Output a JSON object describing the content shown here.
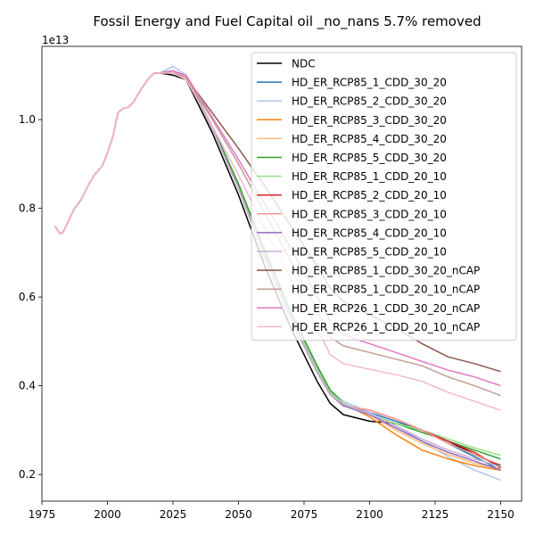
{
  "chart_data": {
    "type": "line",
    "title": "Fossil Energy and Fuel Capital oil _no_nans 5.7% removed",
    "xlabel": "",
    "ylabel": "",
    "y_offset_label": "1e13",
    "xlim": [
      1975,
      2158
    ],
    "ylim": [
      0.14,
      1.165
    ],
    "x_ticks": [
      1975,
      2000,
      2025,
      2050,
      2075,
      2100,
      2125,
      2150
    ],
    "y_ticks": [
      0.2,
      0.4,
      0.6,
      0.8,
      1.0
    ],
    "y_tick_labels": [
      "0.2",
      "0.4",
      "0.6",
      "0.8",
      "1.0"
    ],
    "grid": false,
    "legend_position": "upper right",
    "history": {
      "x": [
        1980,
        1981,
        1982,
        1983,
        1985,
        1987,
        1990,
        1993,
        1995,
        1998,
        2000,
        2002,
        2004,
        2006,
        2008,
        2010,
        2013,
        2016,
        2018,
        2020
      ],
      "y": [
        0.76,
        0.75,
        0.743,
        0.745,
        0.77,
        0.795,
        0.82,
        0.855,
        0.875,
        0.895,
        0.925,
        0.96,
        1.015,
        1.025,
        1.028,
        1.04,
        1.07,
        1.095,
        1.105,
        1.105
      ]
    },
    "series": [
      {
        "name": "NDC",
        "color": "#000000",
        "x": [
          2020,
          2025,
          2030,
          2040,
          2050,
          2060,
          2070,
          2080,
          2085,
          2090,
          2100,
          2110,
          2120,
          2130,
          2140,
          2150
        ],
        "y": [
          1.105,
          1.1,
          1.09,
          0.97,
          0.83,
          0.67,
          0.53,
          0.41,
          0.36,
          0.335,
          0.32,
          0.315,
          0.3,
          0.275,
          0.245,
          0.22
        ]
      },
      {
        "name": "HD_ER_RCP85_1_CDD_30_20",
        "color": "#1f77b4",
        "x": [
          2020,
          2025,
          2030,
          2040,
          2050,
          2060,
          2070,
          2080,
          2085,
          2090,
          2100,
          2110,
          2120,
          2130,
          2140,
          2150
        ],
        "y": [
          1.105,
          1.11,
          1.095,
          0.98,
          0.845,
          0.69,
          0.55,
          0.43,
          0.38,
          0.355,
          0.34,
          0.32,
          0.3,
          0.27,
          0.24,
          0.21
        ]
      },
      {
        "name": "HD_ER_RCP85_2_CDD_30_20",
        "color": "#aec7e8",
        "x": [
          2020,
          2025,
          2030,
          2040,
          2050,
          2060,
          2070,
          2080,
          2085,
          2090,
          2100,
          2110,
          2120,
          2130,
          2140,
          2150
        ],
        "y": [
          1.105,
          1.12,
          1.1,
          0.985,
          0.85,
          0.7,
          0.56,
          0.44,
          0.39,
          0.365,
          0.34,
          0.31,
          0.275,
          0.24,
          0.21,
          0.187
        ]
      },
      {
        "name": "HD_ER_RCP85_3_CDD_30_20",
        "color": "#ff7f0e",
        "x": [
          2020,
          2025,
          2030,
          2040,
          2050,
          2060,
          2070,
          2080,
          2085,
          2090,
          2100,
          2110,
          2120,
          2130,
          2140,
          2150
        ],
        "y": [
          1.105,
          1.11,
          1.095,
          0.98,
          0.845,
          0.695,
          0.555,
          0.435,
          0.385,
          0.36,
          0.33,
          0.29,
          0.255,
          0.235,
          0.22,
          0.21
        ]
      },
      {
        "name": "HD_ER_RCP85_4_CDD_30_20",
        "color": "#ffbb78",
        "x": [
          2020,
          2025,
          2030,
          2040,
          2050,
          2060,
          2070,
          2080,
          2085,
          2090,
          2100,
          2110,
          2120,
          2130,
          2140,
          2150
        ],
        "y": [
          1.105,
          1.11,
          1.095,
          0.98,
          0.845,
          0.695,
          0.555,
          0.435,
          0.385,
          0.36,
          0.335,
          0.3,
          0.27,
          0.245,
          0.225,
          0.213
        ]
      },
      {
        "name": "HD_ER_RCP85_5_CDD_30_20",
        "color": "#2ca02c",
        "x": [
          2020,
          2025,
          2030,
          2040,
          2050,
          2060,
          2070,
          2080,
          2085,
          2090,
          2100,
          2110,
          2120,
          2130,
          2140,
          2150
        ],
        "y": [
          1.105,
          1.11,
          1.095,
          0.985,
          0.855,
          0.705,
          0.565,
          0.445,
          0.39,
          0.36,
          0.335,
          0.315,
          0.295,
          0.275,
          0.255,
          0.235
        ]
      },
      {
        "name": "HD_ER_RCP85_1_CDD_20_10",
        "color": "#98df8a",
        "x": [
          2020,
          2025,
          2030,
          2040,
          2050,
          2060,
          2070,
          2080,
          2085,
          2090,
          2100,
          2110,
          2120,
          2130,
          2140,
          2150
        ],
        "y": [
          1.105,
          1.11,
          1.095,
          0.98,
          0.845,
          0.695,
          0.555,
          0.435,
          0.385,
          0.36,
          0.335,
          0.315,
          0.3,
          0.28,
          0.26,
          0.243
        ]
      },
      {
        "name": "HD_ER_RCP85_2_CDD_20_10",
        "color": "#d62728",
        "x": [
          2020,
          2025,
          2030,
          2040,
          2050,
          2060,
          2070,
          2080,
          2085,
          2090,
          2100,
          2110,
          2120,
          2130,
          2140,
          2150
        ],
        "y": [
          1.105,
          1.11,
          1.095,
          0.98,
          0.845,
          0.69,
          0.55,
          0.43,
          0.38,
          0.355,
          0.345,
          0.325,
          0.3,
          0.275,
          0.25,
          0.215
        ]
      },
      {
        "name": "HD_ER_RCP85_3_CDD_20_10",
        "color": "#ff9896",
        "x": [
          2020,
          2025,
          2030,
          2040,
          2050,
          2060,
          2070,
          2080,
          2085,
          2090,
          2100,
          2110,
          2120,
          2130,
          2140,
          2150
        ],
        "y": [
          1.105,
          1.11,
          1.095,
          0.98,
          0.845,
          0.69,
          0.55,
          0.43,
          0.38,
          0.355,
          0.345,
          0.325,
          0.3,
          0.27,
          0.245,
          0.222
        ]
      },
      {
        "name": "HD_ER_RCP85_4_CDD_20_10",
        "color": "#9467bd",
        "x": [
          2020,
          2025,
          2030,
          2040,
          2050,
          2060,
          2070,
          2080,
          2085,
          2090,
          2100,
          2110,
          2120,
          2130,
          2140,
          2150
        ],
        "y": [
          1.105,
          1.11,
          1.095,
          0.98,
          0.845,
          0.69,
          0.55,
          0.43,
          0.38,
          0.355,
          0.335,
          0.305,
          0.275,
          0.25,
          0.23,
          0.21
        ]
      },
      {
        "name": "HD_ER_RCP85_5_CDD_20_10",
        "color": "#c5b0d5",
        "x": [
          2020,
          2025,
          2030,
          2040,
          2050,
          2060,
          2070,
          2080,
          2085,
          2090,
          2100,
          2110,
          2120,
          2130,
          2140,
          2150
        ],
        "y": [
          1.105,
          1.11,
          1.095,
          0.98,
          0.845,
          0.69,
          0.55,
          0.43,
          0.38,
          0.358,
          0.337,
          0.31,
          0.28,
          0.255,
          0.235,
          0.218
        ]
      },
      {
        "name": "HD_ER_RCP85_1_CDD_30_20_nCAP",
        "color": "#8c564b",
        "x": [
          2020,
          2025,
          2030,
          2040,
          2050,
          2060,
          2070,
          2080,
          2085,
          2090,
          2100,
          2110,
          2120,
          2130,
          2140,
          2150
        ],
        "y": [
          1.105,
          1.105,
          1.095,
          1.015,
          0.935,
          0.85,
          0.76,
          0.67,
          0.62,
          0.59,
          0.56,
          0.53,
          0.495,
          0.465,
          0.45,
          0.432
        ]
      },
      {
        "name": "HD_ER_RCP85_1_CDD_20_10_nCAP",
        "color": "#c49c94",
        "x": [
          2020,
          2025,
          2030,
          2040,
          2050,
          2060,
          2070,
          2080,
          2085,
          2090,
          2100,
          2110,
          2120,
          2130,
          2140,
          2150
        ],
        "y": [
          1.105,
          1.105,
          1.095,
          1.0,
          0.9,
          0.79,
          0.68,
          0.57,
          0.51,
          0.49,
          0.475,
          0.46,
          0.445,
          0.42,
          0.4,
          0.378
        ]
      },
      {
        "name": "HD_ER_RCP26_1_CDD_30_20_nCAP",
        "color": "#e377c2",
        "x": [
          2020,
          2025,
          2030,
          2040,
          2050,
          2060,
          2070,
          2080,
          2085,
          2090,
          2100,
          2110,
          2120,
          2130,
          2140,
          2150
        ],
        "y": [
          1.105,
          1.11,
          1.1,
          1.005,
          0.91,
          0.81,
          0.71,
          0.6,
          0.545,
          0.515,
          0.495,
          0.475,
          0.455,
          0.435,
          0.42,
          0.4
        ]
      },
      {
        "name": "HD_ER_RCP26_1_CDD_20_10_nCAP",
        "color": "#f7b6d2",
        "x": [
          2020,
          2025,
          2030,
          2040,
          2050,
          2060,
          2070,
          2080,
          2085,
          2090,
          2100,
          2110,
          2120,
          2130,
          2140,
          2150
        ],
        "y": [
          1.105,
          1.105,
          1.09,
          0.985,
          0.875,
          0.755,
          0.64,
          0.53,
          0.47,
          0.45,
          0.437,
          0.425,
          0.41,
          0.385,
          0.365,
          0.345
        ]
      }
    ]
  }
}
